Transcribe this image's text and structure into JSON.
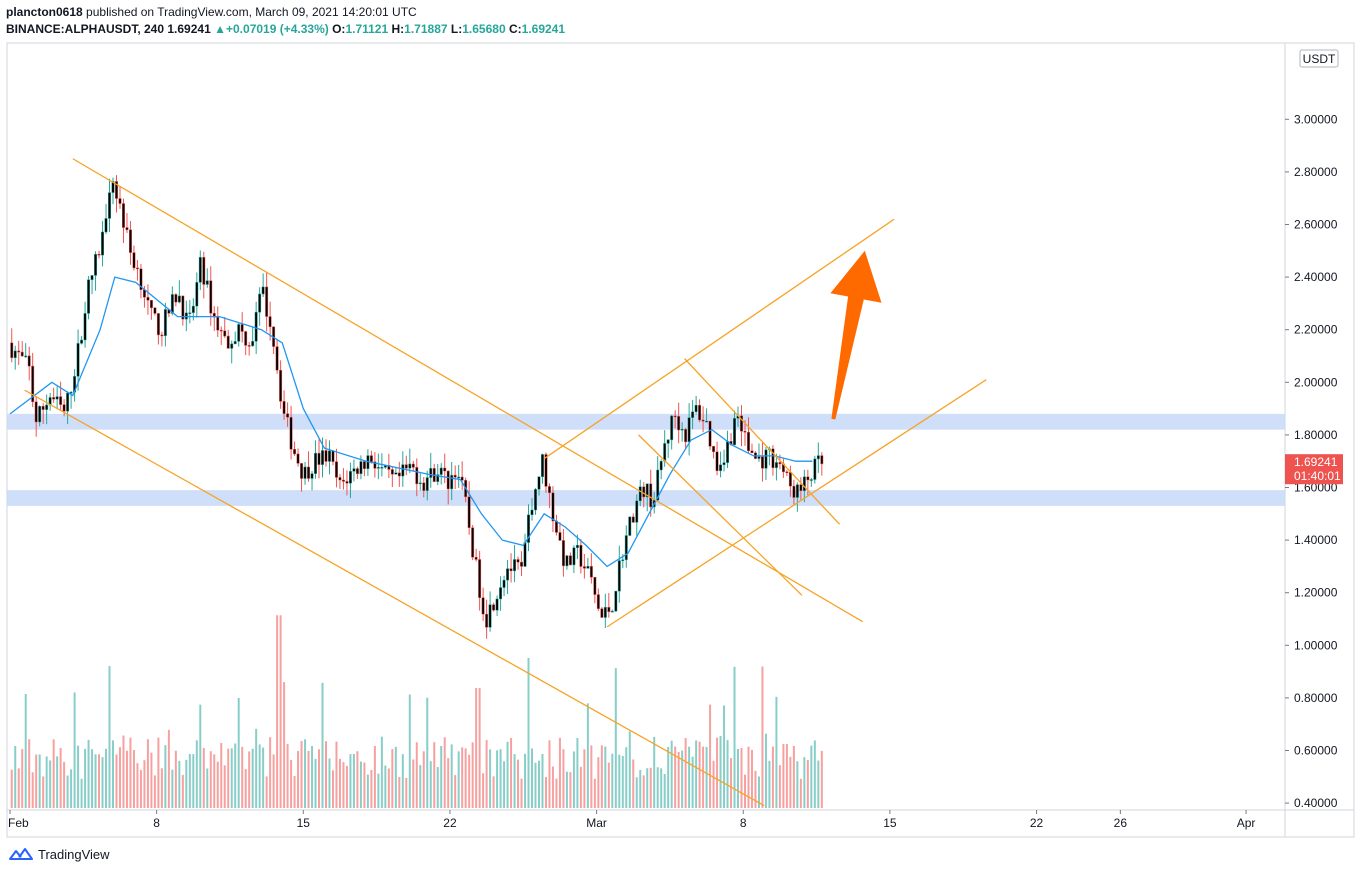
{
  "header": {
    "author": "plancton0618",
    "published_text": "published on TradingView.com, March 09, 2021 14:20:01 UTC",
    "symbol": "BINANCE:ALPHAUSDT, 240",
    "last": "1.69241",
    "change": "+0.07019 (+4.33%)",
    "o_label": "O:",
    "o_value": "1.71121",
    "h_label": "H:",
    "h_value": "1.71887",
    "l_label": "L:",
    "l_value": "1.65680",
    "c_label": "C:",
    "c_value": "1.69241"
  },
  "price_axis": {
    "currency_badge": "USDT",
    "price_tag": "1.69241",
    "countdown": "01:40:01"
  },
  "footer": {
    "brand": "TradingView"
  },
  "colors": {
    "up": "#26a69a",
    "down": "#ef5350",
    "candle_body": "#000000",
    "ma": "#2196f3",
    "trendline": "#f7a325",
    "zone": "#c7d9f8",
    "arrow": "#ff6a00"
  },
  "chart_data": {
    "type": "candlestick",
    "title": "",
    "xlabel": "",
    "ylabel": "",
    "ylim": [
      0.36,
      3.24
    ],
    "y_ticks": [
      "3.00000",
      "2.80000",
      "2.60000",
      "2.40000",
      "2.20000",
      "2.00000",
      "1.80000",
      "1.60000",
      "1.40000",
      "1.20000",
      "1.00000",
      "0.80000",
      "0.60000",
      "0.40000"
    ],
    "y_tick_values": [
      3.0,
      2.8,
      2.6,
      2.4,
      2.2,
      2.0,
      1.8,
      1.6,
      1.4,
      1.2,
      1.0,
      0.8,
      0.6,
      0.4
    ],
    "x_ticks": [
      "Feb",
      "8",
      "15",
      "22",
      "Mar",
      "8",
      "15",
      "22",
      "26",
      "Apr"
    ],
    "x_tick_days": [
      0,
      7,
      14,
      21,
      28,
      35,
      42,
      49,
      53,
      59
    ],
    "x_range_days": [
      0,
      61.5
    ],
    "timeframe": "240",
    "price_path": [
      [
        0,
        2.15
      ],
      [
        1,
        2.05
      ],
      [
        1.3,
        1.85
      ],
      [
        2,
        1.95
      ],
      [
        2.7,
        1.88
      ],
      [
        3.3,
        2.1
      ],
      [
        3.8,
        2.35
      ],
      [
        4.5,
        2.55
      ],
      [
        4.9,
        2.8
      ],
      [
        5.4,
        2.65
      ],
      [
        5.8,
        2.5
      ],
      [
        6.3,
        2.4
      ],
      [
        6.8,
        2.25
      ],
      [
        7.3,
        2.2
      ],
      [
        8.1,
        2.35
      ],
      [
        8.6,
        2.2
      ],
      [
        9.2,
        2.45
      ],
      [
        9.8,
        2.25
      ],
      [
        10.4,
        2.15
      ],
      [
        11,
        2.2
      ],
      [
        11.6,
        2.15
      ],
      [
        12.1,
        2.35
      ],
      [
        12.6,
        2.2
      ],
      [
        13.1,
        1.9
      ],
      [
        13.6,
        1.75
      ],
      [
        14.1,
        1.65
      ],
      [
        14.6,
        1.7
      ],
      [
        15.3,
        1.72
      ],
      [
        15.8,
        1.6
      ],
      [
        16.3,
        1.65
      ],
      [
        17.3,
        1.72
      ],
      [
        17.9,
        1.65
      ],
      [
        18.5,
        1.62
      ],
      [
        19.2,
        1.68
      ],
      [
        19.8,
        1.62
      ],
      [
        20.5,
        1.67
      ],
      [
        21,
        1.62
      ],
      [
        21.4,
        1.68
      ],
      [
        21.8,
        1.55
      ],
      [
        22.3,
        1.3
      ],
      [
        22.8,
        1.1
      ],
      [
        23.3,
        1.2
      ],
      [
        23.8,
        1.3
      ],
      [
        24.5,
        1.28
      ],
      [
        25,
        1.55
      ],
      [
        25.5,
        1.7
      ],
      [
        26,
        1.5
      ],
      [
        26.6,
        1.3
      ],
      [
        27.2,
        1.35
      ],
      [
        27.8,
        1.25
      ],
      [
        28.3,
        1.1
      ],
      [
        28.8,
        1.15
      ],
      [
        29.3,
        1.35
      ],
      [
        29.8,
        1.5
      ],
      [
        30.3,
        1.6
      ],
      [
        30.8,
        1.55
      ],
      [
        31.3,
        1.75
      ],
      [
        31.8,
        1.88
      ],
      [
        32.3,
        1.8
      ],
      [
        32.8,
        1.9
      ],
      [
        33.3,
        1.85
      ],
      [
        33.8,
        1.68
      ],
      [
        34.3,
        1.75
      ],
      [
        34.8,
        1.88
      ],
      [
        35.3,
        1.75
      ],
      [
        35.8,
        1.7
      ],
      [
        36.3,
        1.72
      ],
      [
        36.8,
        1.7
      ],
      [
        37.3,
        1.6
      ],
      [
        37.8,
        1.58
      ],
      [
        38.3,
        1.65
      ],
      [
        38.7,
        1.69
      ]
    ],
    "ma_path": [
      [
        0,
        1.88
      ],
      [
        2,
        2.0
      ],
      [
        3,
        1.95
      ],
      [
        4.3,
        2.2
      ],
      [
        5,
        2.4
      ],
      [
        6,
        2.38
      ],
      [
        8,
        2.25
      ],
      [
        10,
        2.25
      ],
      [
        12,
        2.2
      ],
      [
        13,
        2.15
      ],
      [
        14,
        1.9
      ],
      [
        15,
        1.75
      ],
      [
        17,
        1.7
      ],
      [
        20,
        1.65
      ],
      [
        21.5,
        1.63
      ],
      [
        22.5,
        1.5
      ],
      [
        23.5,
        1.4
      ],
      [
        24.5,
        1.38
      ],
      [
        25.5,
        1.5
      ],
      [
        26.5,
        1.45
      ],
      [
        27.5,
        1.38
      ],
      [
        28.5,
        1.3
      ],
      [
        29.5,
        1.35
      ],
      [
        30.5,
        1.5
      ],
      [
        31.5,
        1.65
      ],
      [
        32.5,
        1.78
      ],
      [
        33.5,
        1.82
      ],
      [
        34.5,
        1.76
      ],
      [
        35.5,
        1.72
      ],
      [
        36.5,
        1.72
      ],
      [
        37.5,
        1.7
      ],
      [
        38.3,
        1.7
      ]
    ],
    "volume_ylim": [
      0,
      5.5
    ],
    "zones": [
      {
        "low": 1.82,
        "high": 1.88
      },
      {
        "low": 1.53,
        "high": 1.59
      }
    ],
    "trendlines": [
      {
        "from": [
          3,
          2.85
        ],
        "to": [
          40.7,
          1.09
        ]
      },
      {
        "from": [
          0.7,
          1.97
        ],
        "to": [
          36,
          0.39
        ]
      },
      {
        "from": [
          25.5,
          1.71
        ],
        "to": [
          42.2,
          2.62
        ]
      },
      {
        "from": [
          28.5,
          1.07
        ],
        "to": [
          46.6,
          2.01
        ]
      },
      {
        "from": [
          30,
          1.8
        ],
        "to": [
          37.8,
          1.19
        ]
      },
      {
        "from": [
          32.2,
          2.09
        ],
        "to": [
          39.6,
          1.46
        ]
      }
    ],
    "arrow": {
      "from": [
        39.3,
        1.86
      ],
      "to": [
        40.8,
        2.5
      ]
    }
  }
}
